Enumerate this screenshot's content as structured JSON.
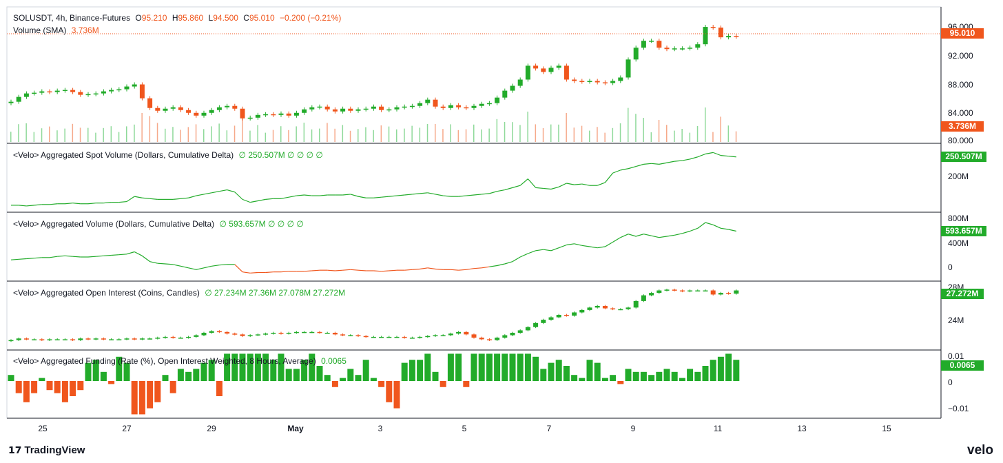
{
  "header": {
    "symbol": "SOLUSDT, 4h, Binance-Futures",
    "o_label": "O",
    "o_value": "95.210",
    "h_label": "H",
    "h_value": "95.860",
    "l_label": "L",
    "l_value": "94.500",
    "c_label": "C",
    "c_value": "95.010",
    "change": "−0.200 (−0.21%)",
    "volume_label": "Volume (SMA)",
    "volume_value": "3.736M"
  },
  "panes": {
    "spot": {
      "label": "<Velo> Aggregated Spot Volume (Dollars, Cumulative Delta)",
      "values": "∅  250.507M  ∅  ∅  ∅  ∅",
      "badge": "250.507M",
      "ticks": [
        "200M"
      ]
    },
    "agg": {
      "label": "<Velo> Aggregated Volume (Dollars, Cumulative Delta)",
      "values": "∅  593.657M  ∅  ∅  ∅  ∅",
      "badge": "593.657M",
      "ticks": [
        "800M",
        "400M",
        "0"
      ]
    },
    "oi": {
      "label": "<Velo> Aggregated Open Interest (Coins, Candles)",
      "values": "∅  27.234M  27.36M  27.078M  27.272M",
      "badge": "27.272M",
      "ticks": [
        "28M",
        "24M"
      ]
    },
    "funding": {
      "label": "<Velo> Aggregated Funding (Rate (%), Open Interest Weighted, 8 Hours, Average)",
      "values": "0.0065",
      "badge": "0.0065",
      "ticks": [
        "0.01",
        "0",
        "−0.01"
      ]
    }
  },
  "price_axis": {
    "ticks": [
      "96.000",
      "92.000",
      "88.000",
      "84.000",
      "80.000"
    ],
    "price_badge": "95.010",
    "volume_badge": "3.736M"
  },
  "x_axis": {
    "labels": [
      "25",
      "27",
      "29",
      "May",
      "3",
      "5",
      "7",
      "9",
      "11",
      "13",
      "15"
    ]
  },
  "brand": {
    "left": "TradingView",
    "right": "velo"
  },
  "colors": {
    "up": "#22ab2a",
    "down": "#f0561d",
    "line_green": "#22ab2a",
    "line_red": "#f0561d"
  },
  "chart_data": [
    {
      "type": "candlestick",
      "title": "SOLUSDT, 4h, Binance-Futures",
      "ylim": [
        80,
        97.5
      ],
      "x_labels": [
        "25",
        "27",
        "29",
        "May",
        "3",
        "5",
        "7",
        "9",
        "11",
        "13",
        "15"
      ],
      "close": [
        85.6,
        86.3,
        86.8,
        86.9,
        87.1,
        87.0,
        87.2,
        87.3,
        87.0,
        86.6,
        86.7,
        86.8,
        87.1,
        87.3,
        87.4,
        87.8,
        88.1,
        86.1,
        84.7,
        84.3,
        84.6,
        84.8,
        84.4,
        84.0,
        83.6,
        84.0,
        84.4,
        84.8,
        85.0,
        84.6,
        83.2,
        83.3,
        83.7,
        83.8,
        83.7,
        83.9,
        83.6,
        84.0,
        84.5,
        84.8,
        84.9,
        84.5,
        84.2,
        84.6,
        84.3,
        84.5,
        84.6,
        84.9,
        84.4,
        84.5,
        84.8,
        84.9,
        85.0,
        85.4,
        85.9,
        84.9,
        84.7,
        85.1,
        84.8,
        84.7,
        85.0,
        85.3,
        85.4,
        86.2,
        87.2,
        87.9,
        88.8,
        90.8,
        90.4,
        89.9,
        90.5,
        90.8,
        88.8,
        88.6,
        88.5,
        88.6,
        88.4,
        88.3,
        88.6,
        89.1,
        91.7,
        93.4,
        94.4,
        94.4,
        93.4,
        93.2,
        93.3,
        93.3,
        93.4,
        93.9,
        96.4,
        96.3,
        94.9,
        95.1,
        95.0
      ],
      "volume_sma": "3.736M"
    },
    {
      "type": "line",
      "title": "<Velo> Aggregated Spot Volume (Dollars, Cumulative Delta)",
      "series": [
        {
          "values": [
            0.02,
            0.02,
            0.01,
            0.02,
            0.03,
            0.03,
            0.04,
            0.04,
            0.05,
            0.04,
            0.04,
            0.05,
            0.05,
            0.06,
            0.06,
            0.07,
            0.14,
            0.12,
            0.11,
            0.1,
            0.1,
            0.1,
            0.11,
            0.12,
            0.15,
            0.17,
            0.19,
            0.21,
            0.23,
            0.2,
            0.1,
            0.06,
            0.08,
            0.1,
            0.11,
            0.11,
            0.13,
            0.15,
            0.16,
            0.15,
            0.15,
            0.16,
            0.16,
            0.16,
            0.17,
            0.14,
            0.12,
            0.12,
            0.13,
            0.14,
            0.15,
            0.16,
            0.17,
            0.18,
            0.19,
            0.17,
            0.15,
            0.14,
            0.14,
            0.15,
            0.16,
            0.17,
            0.18,
            0.21,
            0.23,
            0.26,
            0.29,
            0.38,
            0.26,
            0.25,
            0.24,
            0.27,
            0.32,
            0.3,
            0.31,
            0.29,
            0.29,
            0.33,
            0.46,
            0.5,
            0.52,
            0.55,
            0.58,
            0.59,
            0.58,
            0.6,
            0.62,
            0.63,
            0.65,
            0.68,
            0.72,
            0.74,
            0.7,
            0.69,
            0.68
          ]
        }
      ],
      "last_value": "250.507M",
      "y_ticks": [
        "200M"
      ]
    },
    {
      "type": "line",
      "title": "<Velo> Aggregated Volume (Dollars, Cumulative Delta)",
      "series": [
        {
          "values": [
            0.17,
            0.18,
            0.19,
            0.2,
            0.21,
            0.21,
            0.23,
            0.24,
            0.23,
            0.22,
            0.22,
            0.23,
            0.24,
            0.25,
            0.26,
            0.27,
            0.31,
            0.24,
            0.14,
            0.11,
            0.1,
            0.09,
            0.06,
            0.03,
            0.0,
            0.03,
            0.06,
            0.08,
            0.09,
            0.09,
            -0.04,
            -0.06,
            -0.05,
            -0.05,
            -0.04,
            -0.04,
            -0.03,
            -0.03,
            -0.03,
            -0.02,
            -0.01,
            -0.01,
            -0.02,
            -0.01,
            0.0,
            -0.01,
            -0.02,
            -0.02,
            -0.03,
            -0.02,
            -0.01,
            -0.01,
            0.0,
            0.01,
            0.03,
            0.01,
            0.0,
            0.0,
            -0.01,
            0.0,
            0.02,
            0.03,
            0.05,
            0.07,
            0.1,
            0.14,
            0.22,
            0.28,
            0.33,
            0.35,
            0.33,
            0.38,
            0.43,
            0.45,
            0.42,
            0.4,
            0.38,
            0.4,
            0.48,
            0.56,
            0.62,
            0.58,
            0.62,
            0.59,
            0.56,
            0.58,
            0.6,
            0.63,
            0.67,
            0.72,
            0.82,
            0.78,
            0.72,
            0.7,
            0.67
          ]
        }
      ],
      "last_value": "593.657M",
      "y_ticks": [
        "800M",
        "400M",
        "0"
      ]
    },
    {
      "type": "candlestick",
      "title": "<Velo> Aggregated Open Interest (Coins, Candles)",
      "close": [
        21.2,
        21.4,
        21.3,
        21.3,
        21.2,
        21.3,
        21.3,
        21.3,
        21.2,
        21.4,
        21.3,
        21.4,
        21.3,
        21.3,
        21.3,
        21.4,
        21.3,
        21.4,
        21.4,
        21.5,
        21.6,
        21.5,
        21.5,
        21.6,
        21.8,
        22.1,
        22.3,
        22.2,
        22.0,
        21.9,
        21.7,
        21.8,
        21.9,
        22.0,
        22.1,
        22.0,
        22.1,
        22.2,
        22.2,
        22.2,
        22.1,
        22.1,
        21.9,
        21.8,
        21.8,
        21.7,
        21.6,
        21.6,
        21.6,
        21.6,
        21.6,
        21.5,
        21.5,
        21.6,
        21.7,
        21.8,
        21.8,
        22.0,
        22.2,
        21.9,
        21.5,
        21.3,
        21.2,
        21.5,
        21.8,
        22.1,
        22.4,
        22.8,
        23.3,
        23.7,
        24.0,
        24.3,
        24.2,
        24.6,
        24.9,
        25.2,
        25.4,
        25.1,
        25.0,
        25.0,
        25.2,
        26.0,
        26.7,
        27.0,
        27.3,
        27.4,
        27.3,
        27.2,
        27.3,
        27.3,
        27.3,
        26.8,
        27.0,
        26.9,
        27.3
      ],
      "last_value": "27.272M",
      "y_ticks": [
        "28M",
        "24M"
      ]
    },
    {
      "type": "bar",
      "title": "<Velo> Aggregated Funding (Rate (%), Open Interest Weighted, 8 Hours, Average)",
      "values": [
        0.002,
        -0.004,
        -0.007,
        -0.004,
        0.001,
        -0.003,
        -0.004,
        -0.007,
        -0.005,
        -0.003,
        0.006,
        0.007,
        0.003,
        -0.001,
        0.008,
        0.006,
        -0.011,
        -0.011,
        -0.009,
        -0.007,
        0.002,
        -0.004,
        0.004,
        0.003,
        0.004,
        0.006,
        0.007,
        -0.005,
        0.009,
        0.009,
        0.009,
        0.009,
        0.009,
        0.009,
        0.007,
        0.009,
        0.004,
        0.004,
        0.007,
        0.009,
        0.005,
        0.002,
        -0.002,
        0.001,
        0.004,
        0.002,
        0.007,
        0.001,
        -0.002,
        -0.007,
        -0.009,
        0.006,
        0.007,
        0.007,
        0.009,
        0.003,
        -0.002,
        0.009,
        0.009,
        -0.002,
        0.009,
        0.009,
        0.009,
        0.009,
        0.009,
        0.009,
        0.009,
        0.009,
        0.008,
        0.004,
        0.006,
        0.007,
        0.005,
        0.002,
        0.001,
        0.007,
        0.006,
        0.001,
        0.002,
        -0.001,
        0.004,
        0.003,
        0.003,
        0.002,
        0.003,
        0.004,
        0.003,
        0.001,
        0.004,
        0.003,
        0.005,
        0.007,
        0.008,
        0.009,
        0.007
      ],
      "last_value": "0.0065",
      "y_ticks": [
        "0.01",
        "0",
        "−0.01"
      ]
    }
  ]
}
